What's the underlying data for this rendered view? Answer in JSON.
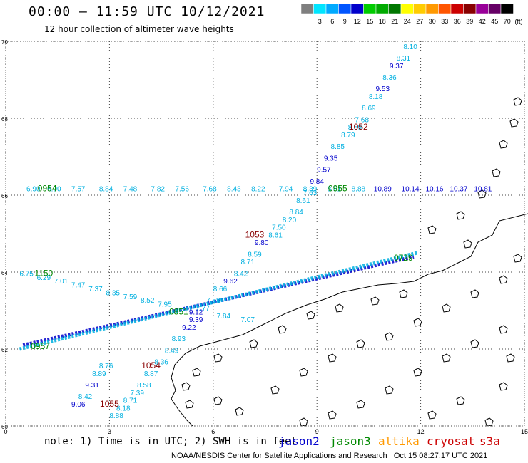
{
  "header": {
    "title": "00:00 – 11:59 UTC 10/12/2021",
    "subtitle": "12 hour collection of altimeter wave heights"
  },
  "footer": {
    "note": "note: 1) Time is in UTC; 2) SWH is in feet",
    "credit": "NOAA/NESDIS Center for Satellite Applications and Research",
    "timestamp": "Oct 15 08:27:17 UTC 2021",
    "satellites": [
      {
        "name": "jason2",
        "color": "#0000cc"
      },
      {
        "name": "jason3",
        "color": "#008800"
      },
      {
        "name": "altika",
        "color": "#ff9900"
      },
      {
        "name": "cryosat",
        "color": "#cc0000"
      },
      {
        "name": "s3a",
        "color": "#cc0000"
      }
    ]
  },
  "colorbar": {
    "unit": "(ft)",
    "stops": [
      {
        "label": "",
        "color": "#7f7f7f"
      },
      {
        "label": "3",
        "color": "#00e5ff"
      },
      {
        "label": "6",
        "color": "#00aaff"
      },
      {
        "label": "9",
        "color": "#0055ff"
      },
      {
        "label": "12",
        "color": "#0000cc"
      },
      {
        "label": "15",
        "color": "#00cc00"
      },
      {
        "label": "18",
        "color": "#00aa00"
      },
      {
        "label": "21",
        "color": "#007700"
      },
      {
        "label": "24",
        "color": "#ffff00"
      },
      {
        "label": "27",
        "color": "#ffcc00"
      },
      {
        "label": "30",
        "color": "#ff9900"
      },
      {
        "label": "33",
        "color": "#ff5500"
      },
      {
        "label": "36",
        "color": "#cc0000"
      },
      {
        "label": "39",
        "color": "#880000"
      },
      {
        "label": "42",
        "color": "#990099"
      },
      {
        "label": "45",
        "color": "#660066"
      },
      {
        "label": "70",
        "color": "#000000"
      }
    ]
  },
  "chart_data": {
    "type": "scatter",
    "xlim": [
      0,
      15
    ],
    "ylim": [
      60,
      70
    ],
    "x_ticks": [
      "0",
      "3",
      "6",
      "9",
      "12",
      "15"
    ],
    "y_ticks": [
      "60",
      "62",
      "64",
      "66",
      "68",
      "70"
    ],
    "grid": true,
    "colors": {
      "light": "#00b0e0",
      "dark": "#0000cc",
      "green": "#008800",
      "time": "#880000"
    },
    "points": [
      {
        "x": 11.7,
        "y": 69.8,
        "v": "8.10",
        "c": "light"
      },
      {
        "x": 11.5,
        "y": 69.5,
        "v": "8.31",
        "c": "light"
      },
      {
        "x": 11.3,
        "y": 69.3,
        "v": "9.37",
        "c": "dark"
      },
      {
        "x": 11.1,
        "y": 69.0,
        "v": "8.36",
        "c": "light"
      },
      {
        "x": 10.9,
        "y": 68.7,
        "v": "9.53",
        "c": "dark"
      },
      {
        "x": 10.7,
        "y": 68.5,
        "v": "8.18",
        "c": "light"
      },
      {
        "x": 10.5,
        "y": 68.2,
        "v": "8.69",
        "c": "light"
      },
      {
        "x": 10.3,
        "y": 67.9,
        "v": "7.68",
        "c": "light"
      },
      {
        "x": 10.1,
        "y": 67.7,
        "v": "8.59",
        "c": "light"
      },
      {
        "x": 9.9,
        "y": 67.5,
        "v": "8.79",
        "c": "light"
      },
      {
        "x": 9.6,
        "y": 67.2,
        "v": "8.85",
        "c": "light"
      },
      {
        "x": 9.4,
        "y": 66.9,
        "v": "9.35",
        "c": "dark"
      },
      {
        "x": 9.2,
        "y": 66.6,
        "v": "9.57",
        "c": "dark"
      },
      {
        "x": 9.0,
        "y": 66.3,
        "v": "9.84",
        "c": "dark"
      },
      {
        "x": 8.8,
        "y": 66.0,
        "v": "7.63",
        "c": "light"
      },
      {
        "x": 8.6,
        "y": 65.8,
        "v": "8.61",
        "c": "light"
      },
      {
        "x": 8.4,
        "y": 65.5,
        "v": "8.84",
        "c": "light"
      },
      {
        "x": 8.2,
        "y": 65.3,
        "v": "8.20",
        "c": "light"
      },
      {
        "x": 7.9,
        "y": 65.1,
        "v": "7.50",
        "c": "light"
      },
      {
        "x": 7.8,
        "y": 64.9,
        "v": "8.61",
        "c": "light"
      },
      {
        "x": 7.4,
        "y": 64.7,
        "v": "9.80",
        "c": "dark"
      },
      {
        "x": 7.2,
        "y": 64.4,
        "v": "8.59",
        "c": "light"
      },
      {
        "x": 7.0,
        "y": 64.2,
        "v": "8.71",
        "c": "light"
      },
      {
        "x": 6.8,
        "y": 63.9,
        "v": "8.42",
        "c": "light"
      },
      {
        "x": 6.5,
        "y": 63.7,
        "v": "9.62",
        "c": "dark"
      },
      {
        "x": 6.2,
        "y": 63.5,
        "v": "8.66",
        "c": "light"
      },
      {
        "x": 6.0,
        "y": 63.2,
        "v": "7.58",
        "c": "light"
      },
      {
        "x": 5.7,
        "y": 63.0,
        "v": "7.77",
        "c": "light"
      },
      {
        "x": 5.5,
        "y": 62.7,
        "v": "9.39",
        "c": "dark"
      },
      {
        "x": 5.3,
        "y": 62.5,
        "v": "9.22",
        "c": "dark"
      },
      {
        "x": 5.0,
        "y": 62.2,
        "v": "8.93",
        "c": "light"
      },
      {
        "x": 4.8,
        "y": 61.9,
        "v": "8.49",
        "c": "light"
      },
      {
        "x": 4.5,
        "y": 61.6,
        "v": "8.36",
        "c": "light"
      },
      {
        "x": 4.2,
        "y": 61.3,
        "v": "8.87",
        "c": "light"
      },
      {
        "x": 4.0,
        "y": 61.0,
        "v": "8.58",
        "c": "light"
      },
      {
        "x": 3.8,
        "y": 60.8,
        "v": "7.39",
        "c": "light"
      },
      {
        "x": 3.6,
        "y": 60.6,
        "v": "8.71",
        "c": "light"
      },
      {
        "x": 3.4,
        "y": 60.4,
        "v": "8.18",
        "c": "light"
      },
      {
        "x": 3.2,
        "y": 60.2,
        "v": "8.88",
        "c": "light"
      },
      {
        "x": 2.9,
        "y": 61.5,
        "v": "8.76",
        "c": "light"
      },
      {
        "x": 2.7,
        "y": 61.3,
        "v": "8.89",
        "c": "light"
      },
      {
        "x": 2.5,
        "y": 61.0,
        "v": "9.31",
        "c": "dark"
      },
      {
        "x": 2.3,
        "y": 60.7,
        "v": "8.42",
        "c": "light"
      },
      {
        "x": 2.1,
        "y": 60.5,
        "v": "9.06",
        "c": "dark"
      },
      {
        "x": 0.8,
        "y": 66.1,
        "v": "6.90",
        "c": "light"
      },
      {
        "x": 1.4,
        "y": 66.1,
        "v": "6.90",
        "c": "light"
      },
      {
        "x": 2.1,
        "y": 66.1,
        "v": "7.57",
        "c": "light"
      },
      {
        "x": 2.9,
        "y": 66.1,
        "v": "8.84",
        "c": "light"
      },
      {
        "x": 3.6,
        "y": 66.1,
        "v": "7.48",
        "c": "light"
      },
      {
        "x": 4.4,
        "y": 66.1,
        "v": "7.82",
        "c": "light"
      },
      {
        "x": 5.1,
        "y": 66.1,
        "v": "7.56",
        "c": "light"
      },
      {
        "x": 5.9,
        "y": 66.1,
        "v": "7.68",
        "c": "light"
      },
      {
        "x": 6.6,
        "y": 66.1,
        "v": "8.43",
        "c": "light"
      },
      {
        "x": 7.3,
        "y": 66.1,
        "v": "8.22",
        "c": "light"
      },
      {
        "x": 8.1,
        "y": 66.1,
        "v": "7.94",
        "c": "light"
      },
      {
        "x": 8.8,
        "y": 66.1,
        "v": "8.39",
        "c": "light"
      },
      {
        "x": 9.5,
        "y": 66.1,
        "v": "8.61",
        "c": "light"
      },
      {
        "x": 10.2,
        "y": 66.1,
        "v": "8.88",
        "c": "light"
      },
      {
        "x": 10.9,
        "y": 66.1,
        "v": "10.89",
        "c": "dark"
      },
      {
        "x": 11.7,
        "y": 66.1,
        "v": "10.14",
        "c": "dark"
      },
      {
        "x": 12.4,
        "y": 66.1,
        "v": "10.16",
        "c": "dark"
      },
      {
        "x": 13.1,
        "y": 66.1,
        "v": "10.37",
        "c": "dark"
      },
      {
        "x": 13.8,
        "y": 66.1,
        "v": "10.81",
        "c": "dark"
      },
      {
        "x": 0.6,
        "y": 63.9,
        "v": "6.75",
        "c": "light"
      },
      {
        "x": 1.1,
        "y": 63.8,
        "v": "6.29",
        "c": "light"
      },
      {
        "x": 1.6,
        "y": 63.7,
        "v": "7.01",
        "c": "light"
      },
      {
        "x": 2.1,
        "y": 63.6,
        "v": "7.47",
        "c": "light"
      },
      {
        "x": 2.6,
        "y": 63.5,
        "v": "7.37",
        "c": "light"
      },
      {
        "x": 3.1,
        "y": 63.4,
        "v": "8.35",
        "c": "light"
      },
      {
        "x": 3.6,
        "y": 63.3,
        "v": "7.59",
        "c": "light"
      },
      {
        "x": 4.1,
        "y": 63.2,
        "v": "8.52",
        "c": "light"
      },
      {
        "x": 4.6,
        "y": 63.1,
        "v": "7.95",
        "c": "light"
      },
      {
        "x": 5.5,
        "y": 62.9,
        "v": "9.12",
        "c": "dark"
      },
      {
        "x": 6.3,
        "y": 62.8,
        "v": "7.84",
        "c": "light"
      },
      {
        "x": 7.0,
        "y": 62.7,
        "v": "7.07",
        "c": "light"
      }
    ],
    "time_labels": [
      {
        "x": 10.2,
        "y": 67.7,
        "t": "1052",
        "c": "time"
      },
      {
        "x": 7.2,
        "y": 64.9,
        "t": "1053",
        "c": "time"
      },
      {
        "x": 4.2,
        "y": 61.5,
        "t": "1054",
        "c": "time"
      },
      {
        "x": 3.0,
        "y": 60.5,
        "t": "1055",
        "c": "time"
      },
      {
        "x": 1.2,
        "y": 66.1,
        "t": "0954",
        "c": "green"
      },
      {
        "x": 9.6,
        "y": 66.1,
        "t": "0955",
        "c": "green"
      },
      {
        "x": 1.1,
        "y": 63.9,
        "t": "1150",
        "c": "green"
      },
      {
        "x": 11.5,
        "y": 64.3,
        "t": "0729",
        "c": "green"
      },
      {
        "x": 5.0,
        "y": 62.9,
        "t": "0851",
        "c": "green"
      },
      {
        "x": 1.0,
        "y": 62.0,
        "t": "0957",
        "c": "green"
      }
    ],
    "tracks": [
      {
        "from": [
          0.5,
          62.1
        ],
        "to": [
          11.8,
          64.4
        ],
        "c": "dark"
      },
      {
        "from": [
          0.4,
          62.0
        ],
        "to": [
          11.9,
          64.5
        ],
        "c": "light"
      }
    ]
  }
}
